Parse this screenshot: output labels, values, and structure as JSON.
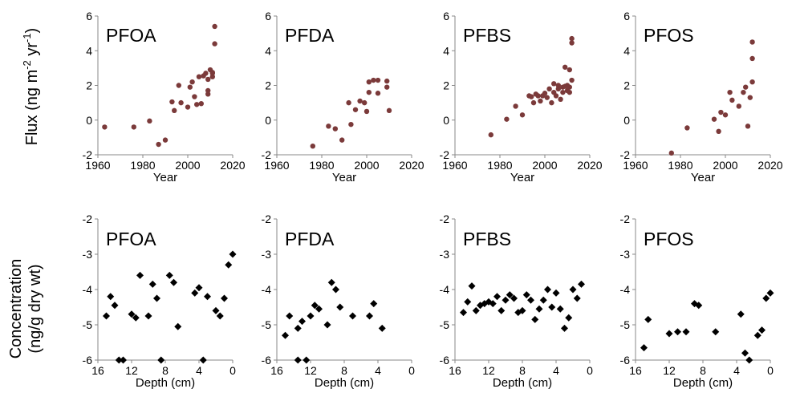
{
  "figure": {
    "top_ylabel": [
      "Flux (ng m",
      "-2",
      " yr",
      "-1",
      ")"
    ],
    "bottom_ylabel_line1": "Concentration",
    "bottom_ylabel_line2": "(ng/g dry wt)"
  },
  "chart_data": [
    {
      "type": "scatter",
      "title": "PFOA",
      "xlabel": "Year",
      "ylabel": "Flux (ng m-2 yr-1)",
      "xlim": [
        1960,
        2020
      ],
      "ylim": [
        -2,
        6
      ],
      "xticks": [
        "1960",
        "1980",
        "2000",
        "2020"
      ],
      "yticks": [
        "-2",
        "0",
        "2",
        "4",
        "6"
      ],
      "marker": "circle",
      "marker_color": "#7b3a3a",
      "points": [
        [
          1963,
          -0.4
        ],
        [
          1976,
          -0.4
        ],
        [
          1983,
          -0.05
        ],
        [
          1987,
          -1.4
        ],
        [
          1990,
          -1.15
        ],
        [
          1993,
          1.05
        ],
        [
          1994,
          0.55
        ],
        [
          1996,
          2.0
        ],
        [
          1997,
          1.0
        ],
        [
          2000,
          0.75
        ],
        [
          2001,
          1.9
        ],
        [
          2002,
          2.2
        ],
        [
          2003,
          1.35
        ],
        [
          2004,
          0.9
        ],
        [
          2005,
          2.5
        ],
        [
          2006,
          0.95
        ],
        [
          2007,
          2.55
        ],
        [
          2008,
          2.7
        ],
        [
          2009,
          1.5
        ],
        [
          2009,
          1.7
        ],
        [
          2009,
          2.35
        ],
        [
          2010,
          2.9
        ],
        [
          2011,
          2.75
        ],
        [
          2011,
          2.5
        ],
        [
          2011,
          2.7
        ],
        [
          2012,
          4.4
        ],
        [
          2012,
          5.4
        ]
      ]
    },
    {
      "type": "scatter",
      "title": "PFDA",
      "xlabel": "Year",
      "ylabel": "Flux (ng m-2 yr-1)",
      "xlim": [
        1960,
        2020
      ],
      "ylim": [
        -2,
        6
      ],
      "xticks": [
        "1960",
        "1980",
        "2000",
        "2020"
      ],
      "yticks": [
        "-2",
        "0",
        "2",
        "4",
        "6"
      ],
      "marker": "circle",
      "marker_color": "#7b3a3a",
      "points": [
        [
          1976,
          -1.5
        ],
        [
          1983,
          -0.35
        ],
        [
          1986,
          -0.5
        ],
        [
          1989,
          -1.15
        ],
        [
          1992,
          1.0
        ],
        [
          1993,
          -0.25
        ],
        [
          1995,
          0.6
        ],
        [
          1997,
          1.1
        ],
        [
          1999,
          1.0
        ],
        [
          2000,
          0.5
        ],
        [
          2001,
          1.6
        ],
        [
          2001,
          2.2
        ],
        [
          2003,
          2.3
        ],
        [
          2005,
          1.55
        ],
        [
          2005,
          2.3
        ],
        [
          2009,
          2.25
        ],
        [
          2009,
          1.9
        ],
        [
          2010,
          0.55
        ]
      ]
    },
    {
      "type": "scatter",
      "title": "PFBS",
      "xlabel": "Year",
      "ylabel": "Flux (ng m-2 yr-1)",
      "xlim": [
        1960,
        2020
      ],
      "ylim": [
        -2,
        6
      ],
      "xticks": [
        "1960",
        "1980",
        "2000",
        "2020"
      ],
      "yticks": [
        "-2",
        "0",
        "2",
        "4",
        "6"
      ],
      "marker": "circle",
      "marker_color": "#7b3a3a",
      "points": [
        [
          1976,
          -0.85
        ],
        [
          1983,
          0.05
        ],
        [
          1987,
          0.8
        ],
        [
          1990,
          0.3
        ],
        [
          1993,
          1.4
        ],
        [
          1994,
          1.35
        ],
        [
          1995,
          1.0
        ],
        [
          1996,
          1.5
        ],
        [
          1997,
          1.4
        ],
        [
          1998,
          1.1
        ],
        [
          1999,
          1.4
        ],
        [
          2000,
          1.55
        ],
        [
          2001,
          1.3
        ],
        [
          2002,
          1.8
        ],
        [
          2003,
          1.0
        ],
        [
          2004,
          1.6
        ],
        [
          2004,
          2.1
        ],
        [
          2005,
          1.4
        ],
        [
          2006,
          1.8
        ],
        [
          2006,
          2.0
        ],
        [
          2007,
          1.2
        ],
        [
          2008,
          1.9
        ],
        [
          2008,
          1.6
        ],
        [
          2009,
          3.05
        ],
        [
          2009,
          1.95
        ],
        [
          2010,
          2.0
        ],
        [
          2010,
          1.7
        ],
        [
          2011,
          1.9
        ],
        [
          2011,
          2.9
        ],
        [
          2011,
          1.6
        ],
        [
          2012,
          2.3
        ],
        [
          2012,
          4.45
        ],
        [
          2012,
          4.7
        ]
      ]
    },
    {
      "type": "scatter",
      "title": "PFOS",
      "xlabel": "Year",
      "ylabel": "Flux (ng m-2 yr-1)",
      "xlim": [
        1960,
        2020
      ],
      "ylim": [
        -2,
        6
      ],
      "xticks": [
        "1960",
        "1980",
        "2000",
        "2020"
      ],
      "yticks": [
        "-2",
        "0",
        "2",
        "4",
        "6"
      ],
      "marker": "circle",
      "marker_color": "#7b3a3a",
      "points": [
        [
          1976,
          -1.9
        ],
        [
          1983,
          -0.45
        ],
        [
          1995,
          0.05
        ],
        [
          1997,
          -0.65
        ],
        [
          1998,
          0.45
        ],
        [
          2000,
          0.3
        ],
        [
          2002,
          1.6
        ],
        [
          2003,
          1.15
        ],
        [
          2006,
          0.8
        ],
        [
          2008,
          1.6
        ],
        [
          2009,
          1.9
        ],
        [
          2010,
          -0.35
        ],
        [
          2011,
          1.3
        ],
        [
          2012,
          2.2
        ],
        [
          2012,
          3.55
        ],
        [
          2012,
          4.5
        ]
      ]
    },
    {
      "type": "scatter",
      "title": "PFOA",
      "xlabel": "Depth (cm)",
      "ylabel": "Concentration (ng/g dry wt)",
      "xlim": [
        16,
        0
      ],
      "ylim": [
        -6,
        -2
      ],
      "xticks": [
        "16",
        "12",
        "8",
        "4",
        "0"
      ],
      "yticks": [
        "-2",
        "-3",
        "-4",
        "-5",
        "-6"
      ],
      "marker": "diamond",
      "marker_color": "#000000",
      "points": [
        [
          15,
          -4.75
        ],
        [
          14.5,
          -4.2
        ],
        [
          14,
          -4.45
        ],
        [
          13.5,
          -6.0
        ],
        [
          13,
          -6.0
        ],
        [
          12,
          -4.7
        ],
        [
          11.5,
          -4.8
        ],
        [
          11,
          -3.6
        ],
        [
          10,
          -4.75
        ],
        [
          9.5,
          -3.85
        ],
        [
          9,
          -4.25
        ],
        [
          8.5,
          -6.0
        ],
        [
          7.5,
          -3.6
        ],
        [
          7,
          -3.8
        ],
        [
          6.5,
          -5.05
        ],
        [
          4.5,
          -4.1
        ],
        [
          4,
          -3.95
        ],
        [
          3.5,
          -6.0
        ],
        [
          3,
          -4.2
        ],
        [
          2,
          -4.6
        ],
        [
          1.5,
          -4.75
        ],
        [
          1,
          -4.25
        ],
        [
          0.5,
          -3.3
        ],
        [
          0,
          -3.0
        ]
      ]
    },
    {
      "type": "scatter",
      "title": "PFDA",
      "xlabel": "Depth (cm)",
      "ylabel": "Concentration (ng/g dry wt)",
      "xlim": [
        16,
        0
      ],
      "ylim": [
        -6,
        -2
      ],
      "xticks": [
        "16",
        "12",
        "8",
        "4",
        "0"
      ],
      "yticks": [
        "-2",
        "-3",
        "-4",
        "-5",
        "-6"
      ],
      "marker": "diamond",
      "marker_color": "#000000",
      "points": [
        [
          15,
          -5.3
        ],
        [
          14.5,
          -4.75
        ],
        [
          13.5,
          -6.0
        ],
        [
          13.5,
          -5.1
        ],
        [
          13,
          -4.9
        ],
        [
          12.5,
          -6.0
        ],
        [
          12,
          -4.75
        ],
        [
          11.5,
          -4.45
        ],
        [
          11,
          -4.55
        ],
        [
          10,
          -5.0
        ],
        [
          9.5,
          -3.8
        ],
        [
          9,
          -4.0
        ],
        [
          8.5,
          -4.5
        ],
        [
          7,
          -4.75
        ],
        [
          5,
          -4.75
        ],
        [
          4.5,
          -4.4
        ],
        [
          3.5,
          -5.1
        ]
      ]
    },
    {
      "type": "scatter",
      "title": "PFBS",
      "xlabel": "Depth (cm)",
      "ylabel": "Concentration (ng/g dry wt)",
      "xlim": [
        16,
        0
      ],
      "ylim": [
        -6,
        -2
      ],
      "xticks": [
        "16",
        "12",
        "8",
        "4",
        "0"
      ],
      "yticks": [
        "-2",
        "-3",
        "-4",
        "-5",
        "-6"
      ],
      "marker": "diamond",
      "marker_color": "#000000",
      "points": [
        [
          15,
          -4.65
        ],
        [
          14.5,
          -4.35
        ],
        [
          14,
          -3.9
        ],
        [
          13.5,
          -4.6
        ],
        [
          13,
          -4.45
        ],
        [
          12.5,
          -4.4
        ],
        [
          12,
          -4.35
        ],
        [
          11.5,
          -4.4
        ],
        [
          11,
          -4.2
        ],
        [
          10.5,
          -4.6
        ],
        [
          10,
          -4.3
        ],
        [
          9.5,
          -4.15
        ],
        [
          9,
          -4.25
        ],
        [
          8.5,
          -4.65
        ],
        [
          8,
          -4.6
        ],
        [
          7.5,
          -4.15
        ],
        [
          7,
          -4.3
        ],
        [
          6.5,
          -4.85
        ],
        [
          6,
          -4.55
        ],
        [
          5.5,
          -4.3
        ],
        [
          5,
          -4.0
        ],
        [
          4.5,
          -4.5
        ],
        [
          4,
          -4.1
        ],
        [
          3.5,
          -4.55
        ],
        [
          3,
          -5.1
        ],
        [
          2.5,
          -4.8
        ],
        [
          2,
          -4.0
        ],
        [
          1.5,
          -4.25
        ],
        [
          1,
          -3.85
        ]
      ]
    },
    {
      "type": "scatter",
      "title": "PFOS",
      "xlabel": "Depth (cm)",
      "ylabel": "Concentration (ng/g dry wt)",
      "xlim": [
        16,
        0
      ],
      "ylim": [
        -6,
        -2
      ],
      "xticks": [
        "16",
        "12",
        "8",
        "4",
        "0"
      ],
      "yticks": [
        "-2",
        "-3",
        "-4",
        "-5",
        "-6"
      ],
      "marker": "diamond",
      "marker_color": "#000000",
      "points": [
        [
          15,
          -5.65
        ],
        [
          14.5,
          -4.85
        ],
        [
          12,
          -5.25
        ],
        [
          11,
          -5.2
        ],
        [
          10,
          -5.2
        ],
        [
          9,
          -4.4
        ],
        [
          8.5,
          -4.45
        ],
        [
          6.5,
          -5.2
        ],
        [
          3.5,
          -4.7
        ],
        [
          3,
          -5.8
        ],
        [
          2.5,
          -6.0
        ],
        [
          1.5,
          -5.3
        ],
        [
          1,
          -5.15
        ],
        [
          0.5,
          -4.25
        ],
        [
          0,
          -4.1
        ]
      ]
    }
  ]
}
